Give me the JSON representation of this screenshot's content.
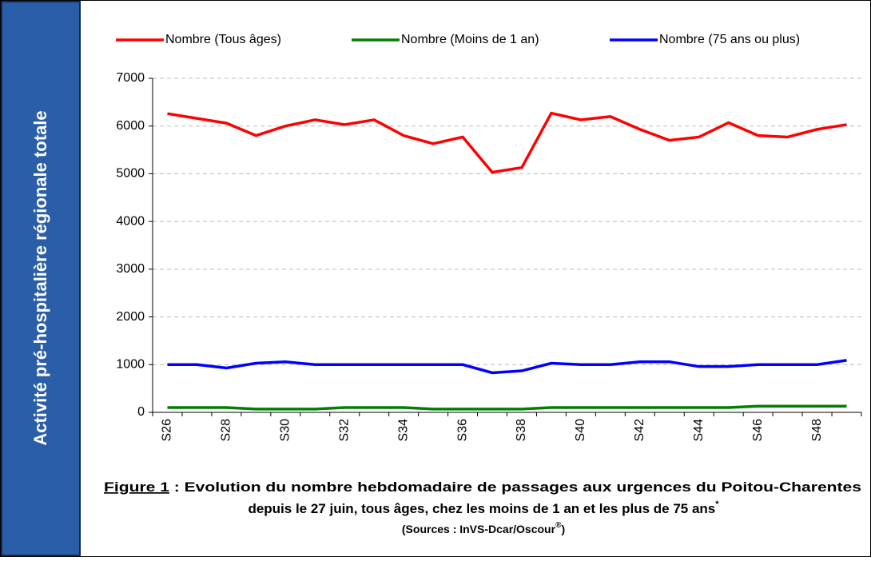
{
  "side_label": "Activité pré-hospitalière régionale totale",
  "chart_data": {
    "type": "line",
    "categories": [
      "S26",
      null,
      "S28",
      null,
      "S30",
      null,
      "S32",
      null,
      "S34",
      null,
      "S36",
      null,
      "S38",
      null,
      "S40",
      null,
      "S42",
      null,
      "S44",
      null,
      "S46",
      null,
      "S48",
      null
    ],
    "series": [
      {
        "name": "Nombre (Tous âges)",
        "color": "#ff0000",
        "values": [
          6260,
          6160,
          6060,
          5800,
          6000,
          6130,
          6030,
          6130,
          5800,
          5630,
          5770,
          5030,
          5130,
          6270,
          6130,
          6200,
          5930,
          5700,
          5770,
          6070,
          5800,
          5770,
          5930,
          6030
        ]
      },
      {
        "name": "Nombre (Moins de 1 an)",
        "color": "#008000",
        "values": [
          100,
          100,
          100,
          70,
          70,
          70,
          100,
          100,
          100,
          70,
          70,
          70,
          70,
          100,
          100,
          100,
          100,
          100,
          100,
          100,
          130,
          130,
          130,
          130
        ]
      },
      {
        "name": "Nombre (75 ans ou plus)",
        "color": "#0000ff",
        "values": [
          1000,
          1000,
          930,
          1030,
          1060,
          1000,
          1000,
          1000,
          1000,
          1000,
          1000,
          830,
          870,
          1030,
          1000,
          1000,
          1060,
          1060,
          960,
          960,
          1000,
          1000,
          1000,
          1090
        ]
      }
    ],
    "ylim": [
      0,
      7000
    ],
    "yticks": [
      0,
      1000,
      2000,
      3000,
      4000,
      5000,
      6000,
      7000
    ],
    "grid": true,
    "caption": {
      "figure": "Figure 1",
      "line1": " : Evolution du nombre hebdomadaire de passages aux urgences du Poitou-Charentes",
      "line2": "depuis le 27 juin, tous âges, chez les moins de 1 an et les plus de 75 ans",
      "line2_sup": "*",
      "line3": "(Sources : InVS-Dcar/Oscour",
      "line3_sup": "®",
      "line3_end": ")"
    }
  }
}
